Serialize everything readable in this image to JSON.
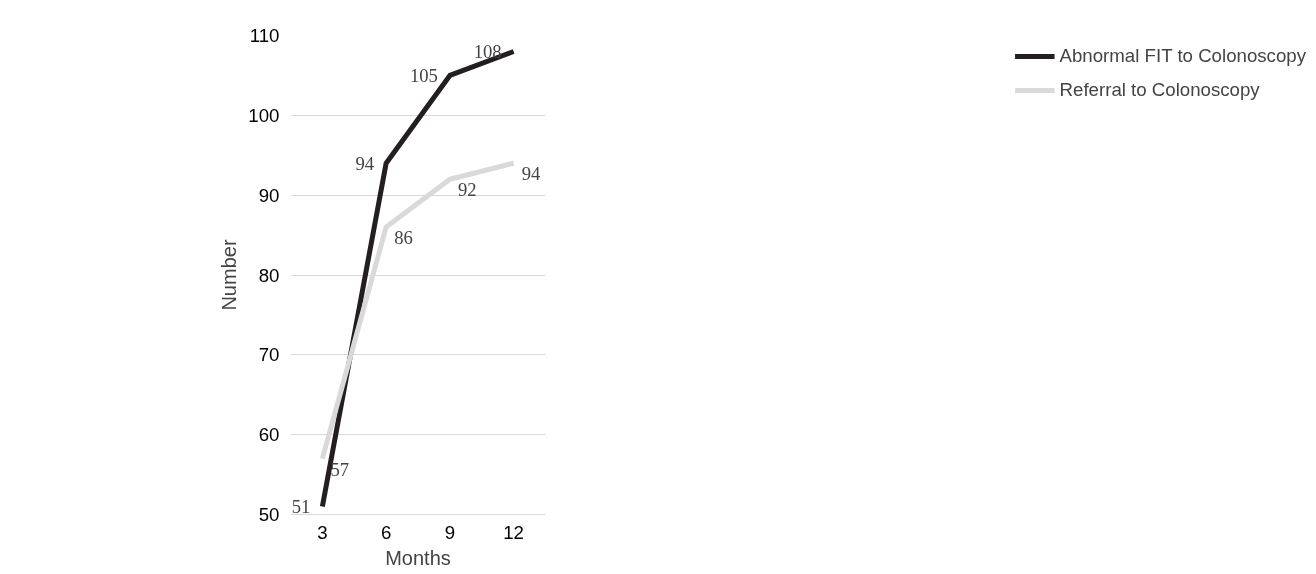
{
  "chart_data": {
    "type": "line",
    "xlabel": "Months",
    "ylabel": "Number",
    "categories": [
      "3",
      "6",
      "9",
      "12"
    ],
    "series": [
      {
        "name": "Abnormal FIT to Colonoscopy",
        "color": "#231f20",
        "values": [
          51,
          94,
          105,
          108
        ]
      },
      {
        "name": "Referral to Colonoscopy",
        "color": "#d9d9d9",
        "values": [
          57,
          86,
          92,
          94
        ]
      }
    ],
    "ylim": [
      50,
      110
    ],
    "yticks": [
      50,
      60,
      70,
      80,
      90,
      100,
      110
    ],
    "grid": "y",
    "legend": "right",
    "data_labels": true,
    "marker": "none",
    "line_style": "solid"
  }
}
